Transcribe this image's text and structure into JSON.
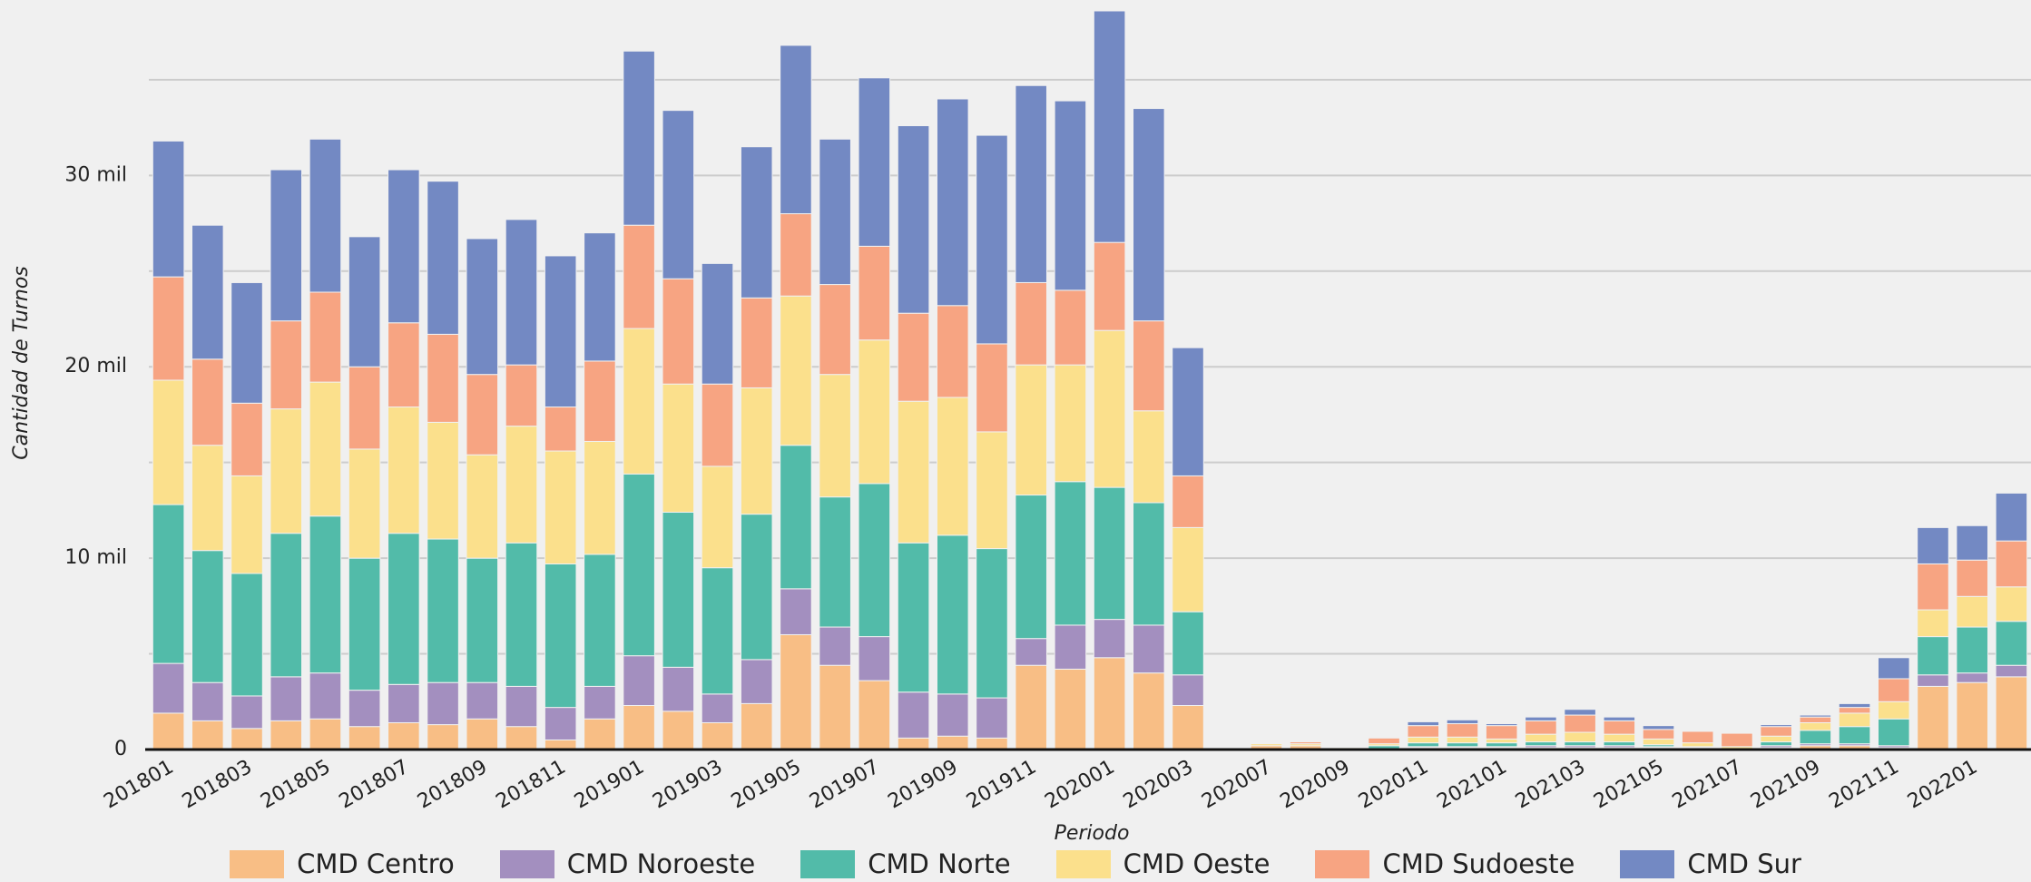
{
  "chart_data": {
    "type": "stacked_bar",
    "x_label": "Periodo",
    "y_label": "Cantidad de Turnos",
    "categories": [
      "201801",
      null,
      "201803",
      null,
      "201805",
      null,
      "201807",
      null,
      "201809",
      null,
      "201811",
      null,
      "201901",
      null,
      "201903",
      null,
      "201905",
      null,
      "201907",
      null,
      "201909",
      null,
      "201911",
      null,
      "202001",
      null,
      "202003",
      null,
      "202007",
      null,
      "202009",
      null,
      "202011",
      null,
      "202101",
      null,
      "202103",
      null,
      "202105",
      null,
      "202107",
      null,
      "202109",
      null,
      "202111",
      null,
      "202201",
      null
    ],
    "series": [
      {
        "name": "CMD Centro",
        "color": "#f8be85",
        "values": [
          1900,
          1500,
          1100,
          1500,
          1600,
          1200,
          1400,
          1300,
          1600,
          1200,
          500,
          1600,
          2300,
          2000,
          1400,
          2400,
          6000,
          4400,
          3600,
          600,
          700,
          600,
          4400,
          4200,
          4800,
          4000,
          2300,
          null,
          200,
          200,
          50,
          50,
          100,
          100,
          100,
          100,
          100,
          100,
          100,
          100,
          50,
          100,
          200,
          200,
          100,
          3300,
          3500,
          3800
        ]
      },
      {
        "name": "CMD Noroeste",
        "color": "#a38fbf",
        "values": [
          2600,
          2000,
          1700,
          2300,
          2400,
          1900,
          2000,
          2200,
          1900,
          2100,
          1700,
          1700,
          2600,
          2300,
          1500,
          2300,
          2400,
          2000,
          2300,
          2400,
          2200,
          2100,
          1400,
          2300,
          2000,
          2500,
          1600,
          null,
          0,
          0,
          0,
          0,
          50,
          50,
          50,
          100,
          100,
          100,
          50,
          0,
          0,
          100,
          100,
          100,
          100,
          600,
          500,
          600
        ]
      },
      {
        "name": "CMD Norte",
        "color": "#52bba9",
        "values": [
          8300,
          6900,
          6400,
          7500,
          8200,
          6900,
          7900,
          7500,
          6500,
          7500,
          7500,
          6900,
          9500,
          8100,
          6600,
          7600,
          7500,
          6800,
          8000,
          7800,
          8300,
          7800,
          7500,
          7500,
          6900,
          6400,
          3300,
          null,
          0,
          0,
          0,
          150,
          200,
          200,
          200,
          200,
          200,
          200,
          100,
          50,
          0,
          200,
          700,
          900,
          1400,
          2000,
          2400,
          2300
        ]
      },
      {
        "name": "CMD Oeste",
        "color": "#fbe08c",
        "values": [
          6500,
          5500,
          5100,
          6500,
          7000,
          5700,
          6600,
          6100,
          5400,
          6100,
          5900,
          5900,
          7600,
          6700,
          5300,
          6600,
          7800,
          6400,
          7500,
          7400,
          7200,
          6100,
          6800,
          6100,
          8200,
          4800,
          4400,
          null,
          100,
          100,
          50,
          100,
          300,
          300,
          200,
          400,
          500,
          400,
          300,
          200,
          100,
          300,
          400,
          700,
          900,
          1400,
          1600,
          1800
        ]
      },
      {
        "name": "CMD Sudoeste",
        "color": "#f7a482",
        "values": [
          5400,
          4500,
          3800,
          4600,
          4700,
          4300,
          4400,
          4600,
          4200,
          3200,
          2300,
          4200,
          5400,
          5500,
          4300,
          4700,
          4300,
          4700,
          4900,
          4600,
          4800,
          4600,
          4300,
          3900,
          4600,
          4700,
          2700,
          null,
          0,
          100,
          0,
          300,
          600,
          700,
          700,
          700,
          900,
          700,
          500,
          600,
          700,
          500,
          300,
          300,
          1200,
          2400,
          1900,
          2400
        ]
      },
      {
        "name": "CMD Sur",
        "color": "#7389c3",
        "values": [
          7100,
          7000,
          6300,
          7900,
          8000,
          6800,
          8000,
          8000,
          7100,
          7600,
          7900,
          6700,
          9100,
          8800,
          6300,
          7900,
          8800,
          7600,
          8800,
          9800,
          10800,
          10900,
          10300,
          9900,
          12100,
          11100,
          6700,
          null,
          0,
          0,
          0,
          0,
          200,
          200,
          100,
          200,
          300,
          200,
          200,
          0,
          0,
          100,
          100,
          200,
          1100,
          1900,
          1800,
          2500
        ]
      }
    ],
    "ylim": [
      0,
      38600
    ],
    "yticks": [
      0,
      {
        "value": 10000,
        "label": "10 mil"
      },
      {
        "value": 20000,
        "label": "20 mil"
      },
      {
        "value": 30000,
        "label": "30 mil"
      }
    ],
    "grid_lines": [
      5000,
      15000,
      25000,
      35000
    ],
    "grid": true
  }
}
